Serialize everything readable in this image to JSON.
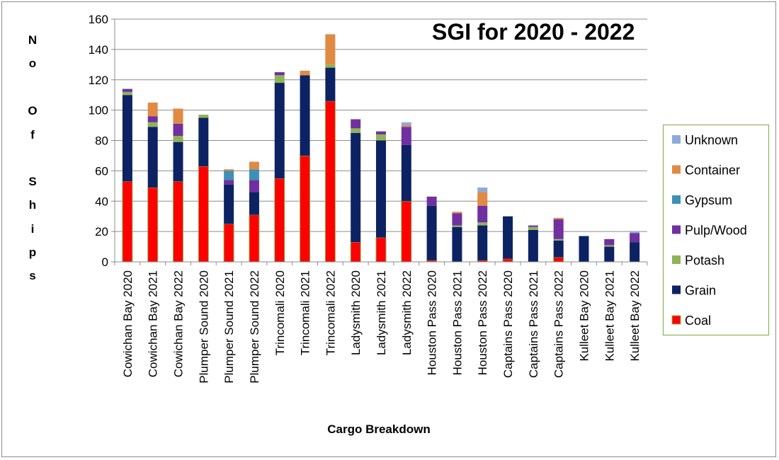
{
  "chart_data": {
    "type": "bar",
    "stacked": true,
    "title": "SGI for 2020 - 2022",
    "xlabel": "Cargo Breakdown",
    "ylabel_letters": [
      "N",
      "o",
      "O",
      "f",
      "S",
      "h",
      "i",
      "p",
      "s"
    ],
    "ylim": [
      0,
      160
    ],
    "yticks": [
      "0",
      "20",
      "40",
      "60",
      "80",
      "100",
      "120",
      "140",
      "160"
    ],
    "grid": true,
    "legend_position": "right",
    "categories": [
      "Cowichan Bay 2020",
      "Cowichan Bay 2021",
      "Cowichan Bay 2022",
      "Plumper Sound 2020",
      "Plumper Sound 2021",
      "Plumper Sound 2022",
      "Trincomali 2020",
      "Trincomali 2021",
      "Trincomali 2022",
      "Ladysmith 2020",
      "Ladysmith 2021",
      "Ladysmith 2022",
      "Houston Pass 2020",
      "Houston Pass 2021",
      "Houston Pass 2022",
      "Captains Pass 2020",
      "Captains Pass 2021",
      "Captains Pass 2022",
      "Kulleet Bay 2020",
      "Kulleet Bay 2021",
      "Kulleet Bay 2022"
    ],
    "series": [
      {
        "name": "Coal",
        "color": "#ff0000",
        "values": [
          53,
          49,
          53,
          63,
          25,
          31,
          55,
          70,
          106,
          13,
          16,
          40,
          1,
          0,
          1,
          2,
          0,
          3,
          0,
          0,
          0
        ]
      },
      {
        "name": "Grain",
        "color": "#0d2262",
        "values": [
          57,
          40,
          26,
          32,
          26,
          15,
          63,
          53,
          22,
          72,
          64,
          37,
          36,
          23,
          23,
          28,
          21,
          11,
          17,
          10,
          13
        ]
      },
      {
        "name": "Potash",
        "color": "#8fb357",
        "values": [
          2,
          3,
          4,
          2,
          0,
          0,
          5,
          0,
          2,
          3,
          4,
          0,
          0,
          1,
          2,
          0,
          2,
          1,
          0,
          1,
          0
        ]
      },
      {
        "name": "Pulp/Wood",
        "color": "#7030a0",
        "values": [
          2,
          4,
          8,
          0,
          3,
          8,
          2,
          0,
          0,
          6,
          2,
          12,
          6,
          8,
          11,
          0,
          1,
          13,
          0,
          4,
          6
        ]
      },
      {
        "name": "Gypsum",
        "color": "#3d91b4",
        "values": [
          0,
          0,
          0,
          0,
          6,
          7,
          0,
          0,
          0,
          0,
          0,
          0,
          0,
          0,
          0,
          0,
          0,
          0,
          0,
          0,
          0
        ]
      },
      {
        "name": "Container",
        "color": "#e08a43",
        "values": [
          0,
          9,
          10,
          0,
          1,
          5,
          0,
          3,
          20,
          0,
          0,
          1,
          0,
          1,
          9,
          0,
          0,
          1,
          0,
          0,
          0
        ]
      },
      {
        "name": "Unknown",
        "color": "#8eaadb",
        "values": [
          0,
          0,
          0,
          0,
          0,
          0,
          0,
          0,
          0,
          0,
          0,
          2,
          0,
          0,
          3,
          0,
          0,
          0,
          0,
          0,
          1
        ]
      }
    ],
    "legend_order": [
      "Unknown",
      "Container",
      "Gypsum",
      "Pulp/Wood",
      "Potash",
      "Grain",
      "Coal"
    ]
  }
}
